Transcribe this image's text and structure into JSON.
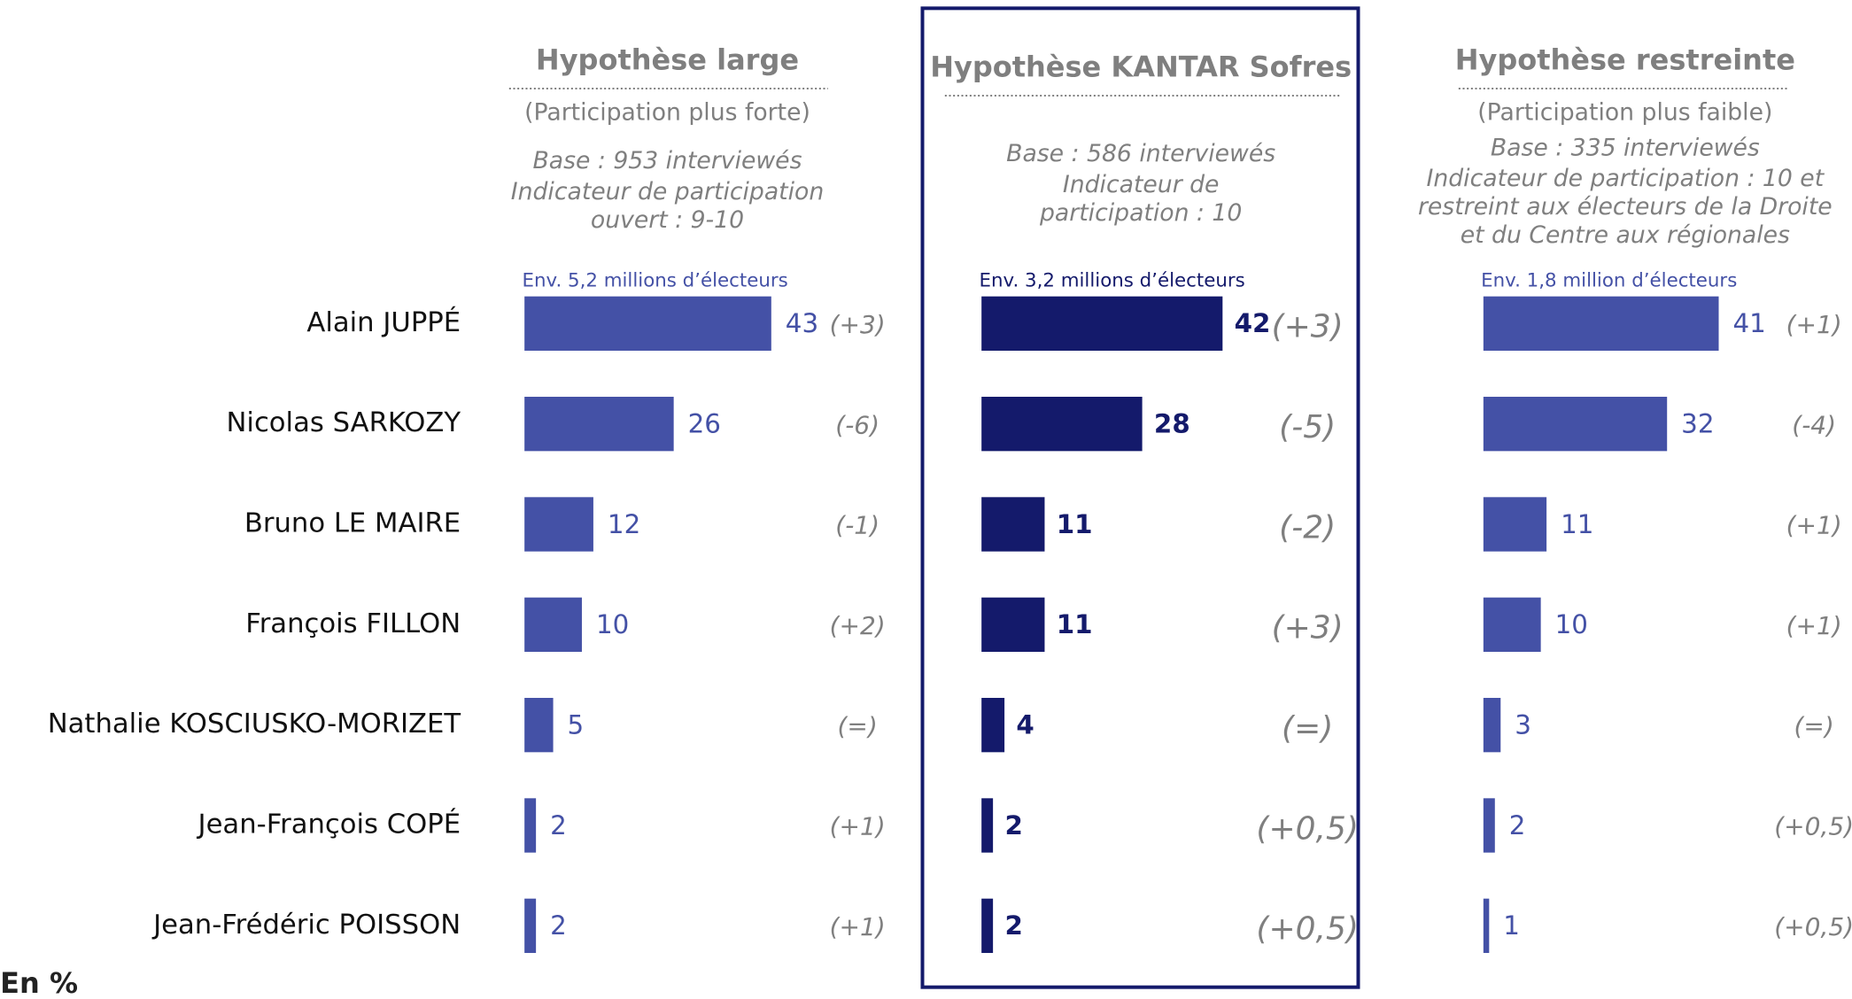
{
  "categories": [
    "Alain JUPPÉ",
    "Nicolas SARKOZY",
    "Bruno LE MAIRE",
    "François FILLON",
    "Nathalie KOSCIUSKO-MORIZET",
    "Jean-François COPÉ",
    "Jean-Frédéric POISSON"
  ],
  "unit_note": "En %",
  "chart_data": [
    {
      "type": "bar",
      "title": "Hypothèse large",
      "subtitle": "(Participation plus forte)",
      "notes": [
        "Base : 953 interviewés",
        "Indicateur de participation",
        "ouvert : 9-10"
      ],
      "electors": "Env. 5,2 millions d’électeurs",
      "color": "#4451a6",
      "values": [
        43,
        26,
        12,
        10,
        5,
        2,
        2
      ],
      "changes": [
        "(+3)",
        "(-6)",
        "(-1)",
        "(+2)",
        "(=)",
        "(+1)",
        "(+1)"
      ]
    },
    {
      "type": "bar",
      "title": "Hypothèse KANTAR Sofres",
      "notes": [
        "Base : 586 interviewés",
        "Indicateur de",
        "participation : 10"
      ],
      "electors": "Env. 3,2 millions d’électeurs",
      "color": "#141a6b",
      "values": [
        42,
        28,
        11,
        11,
        4,
        2,
        2
      ],
      "changes": [
        "(+3)",
        "(-5)",
        "(-2)",
        "(+3)",
        "(=)",
        "(+0,5)",
        "(+0,5)"
      ]
    },
    {
      "type": "bar",
      "title": "Hypothèse restreinte",
      "subtitle": "(Participation plus faible)",
      "notes": [
        "Base : 335 interviewés",
        "Indicateur de participation : 10 et",
        "restreint aux électeurs de la Droite",
        "et du Centre aux régionales"
      ],
      "electors": "Env. 1,8 million d’électeurs",
      "color": "#4451a6",
      "values": [
        41,
        32,
        11,
        10,
        3,
        2,
        1
      ],
      "changes": [
        "(+1)",
        "(-4)",
        "(+1)",
        "(+1)",
        "(=)",
        "(+0,5)",
        "(+0,5)"
      ]
    }
  ]
}
